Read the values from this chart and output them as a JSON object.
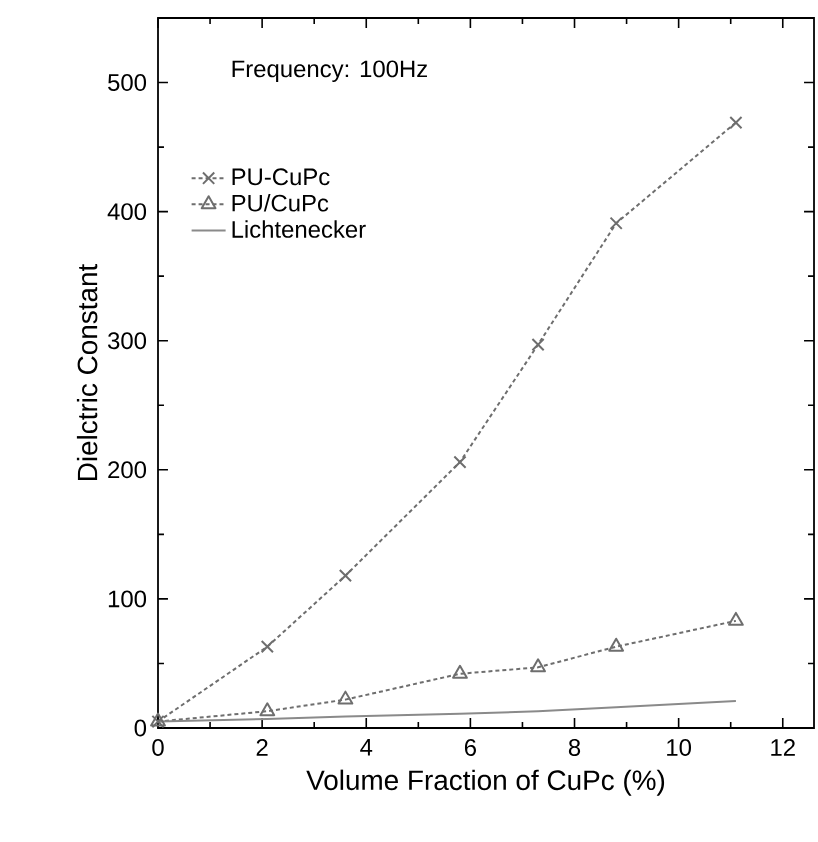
{
  "chart_data": {
    "type": "line",
    "xlabel": "Volume Fraction of CuPc (%)",
    "ylabel": "Dielctric Constant",
    "annotations": [
      "Frequency: 100Hz"
    ],
    "x": [
      0,
      2.1,
      3.6,
      5.8,
      7.3,
      8.8,
      11.1
    ],
    "series": [
      {
        "name": "PU-CuPc",
        "color": "#6e6e6e",
        "marker": "cross",
        "line_style": "dotted",
        "values": [
          5,
          63,
          118,
          206,
          297,
          391,
          469
        ]
      },
      {
        "name": "PU/CuPc",
        "color": "#6e6e6e",
        "marker": "triangle",
        "line_style": "dotted",
        "values": [
          5,
          13,
          22,
          42,
          47,
          63,
          83
        ]
      },
      {
        "name": "Lichtenecker",
        "color": "#8a8a8a",
        "marker": "none",
        "line_style": "solid",
        "values": [
          5,
          7,
          9,
          11,
          13,
          16,
          21
        ]
      }
    ],
    "xlim": [
      0,
      12.6
    ],
    "ylim": [
      0,
      550
    ],
    "xticks": [
      0,
      2,
      4,
      6,
      8,
      10,
      12
    ],
    "yticks": [
      0,
      100,
      200,
      300,
      400,
      500
    ],
    "grid": false,
    "legend": "top left"
  }
}
